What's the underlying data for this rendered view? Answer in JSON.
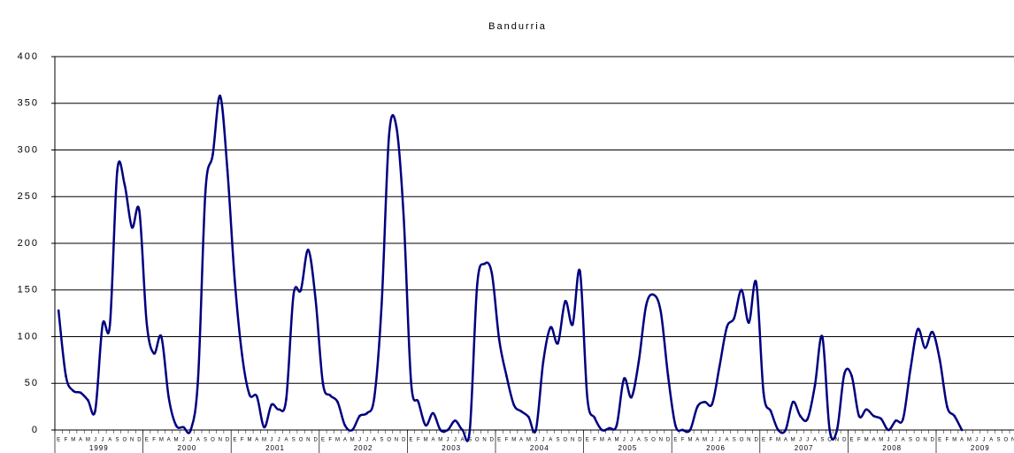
{
  "chart_data": {
    "type": "line",
    "title": "Bandurria",
    "categories": [
      "E",
      "F",
      "M",
      "A",
      "M",
      "J",
      "J",
      "A",
      "S",
      "O",
      "N",
      "D",
      "E",
      "F",
      "M",
      "A",
      "M",
      "J",
      "J",
      "A",
      "S",
      "O",
      "N",
      "D",
      "E",
      "F",
      "M",
      "A",
      "M",
      "J",
      "J",
      "A",
      "S",
      "O",
      "N",
      "D",
      "E",
      "F",
      "M",
      "A",
      "M",
      "J",
      "J",
      "A",
      "S",
      "O",
      "N",
      "D",
      "E",
      "F",
      "M",
      "A",
      "M",
      "J",
      "J",
      "A",
      "S",
      "O",
      "N",
      "D",
      "E",
      "F",
      "M",
      "A",
      "M",
      "J",
      "J",
      "A",
      "S",
      "O",
      "N",
      "D",
      "E",
      "F",
      "M",
      "A",
      "M",
      "J",
      "J",
      "A",
      "S",
      "O",
      "N",
      "D",
      "E",
      "F",
      "M",
      "A",
      "M",
      "J",
      "J",
      "A",
      "S",
      "O",
      "N",
      "D",
      "E",
      "F",
      "M",
      "A",
      "M",
      "J",
      "J",
      "A",
      "S",
      "O",
      "N",
      "D",
      "E",
      "F",
      "M",
      "A",
      "M",
      "J",
      "J",
      "A",
      "S",
      "O",
      "N",
      "D",
      "E",
      "F",
      "M",
      "A",
      "M",
      "J",
      "J",
      "A",
      "S",
      "O",
      "N",
      "D"
    ],
    "year_labels": [
      "1999",
      "2000",
      "2001",
      "2002",
      "2003",
      "2004",
      "2005",
      "2006",
      "2007",
      "2008",
      "2009"
    ],
    "series": [
      {
        "name": "Bandurria",
        "color": "#000080",
        "values": [
          128,
          58,
          42,
          40,
          32,
          21,
          113,
          113,
          278,
          263,
          217,
          235,
          115,
          82,
          100,
          35,
          5,
          3,
          0,
          55,
          255,
          295,
          358,
          278,
          160,
          80,
          38,
          36,
          3,
          27,
          22,
          33,
          145,
          150,
          193,
          140,
          50,
          37,
          30,
          5,
          0,
          15,
          18,
          35,
          135,
          315,
          325,
          228,
          52,
          30,
          5,
          18,
          0,
          0,
          10,
          0,
          0,
          155,
          178,
          168,
          97,
          58,
          27,
          20,
          14,
          0,
          73,
          110,
          93,
          138,
          113,
          170,
          35,
          13,
          0,
          2,
          5,
          55,
          35,
          73,
          133,
          145,
          127,
          58,
          5,
          0,
          0,
          25,
          30,
          28,
          68,
          110,
          120,
          150,
          115,
          158,
          40,
          20,
          0,
          0,
          30,
          15,
          12,
          48,
          100,
          0,
          0,
          60,
          58,
          15,
          22,
          15,
          12,
          0,
          10,
          12,
          65,
          108,
          88,
          105,
          75,
          25,
          15,
          0,
          null,
          null,
          null,
          null,
          null,
          null,
          null,
          null
        ]
      }
    ],
    "ylim": [
      0,
      400
    ],
    "yticks": [
      0,
      50,
      100,
      150,
      200,
      250,
      300,
      350,
      400
    ],
    "grid": true
  }
}
